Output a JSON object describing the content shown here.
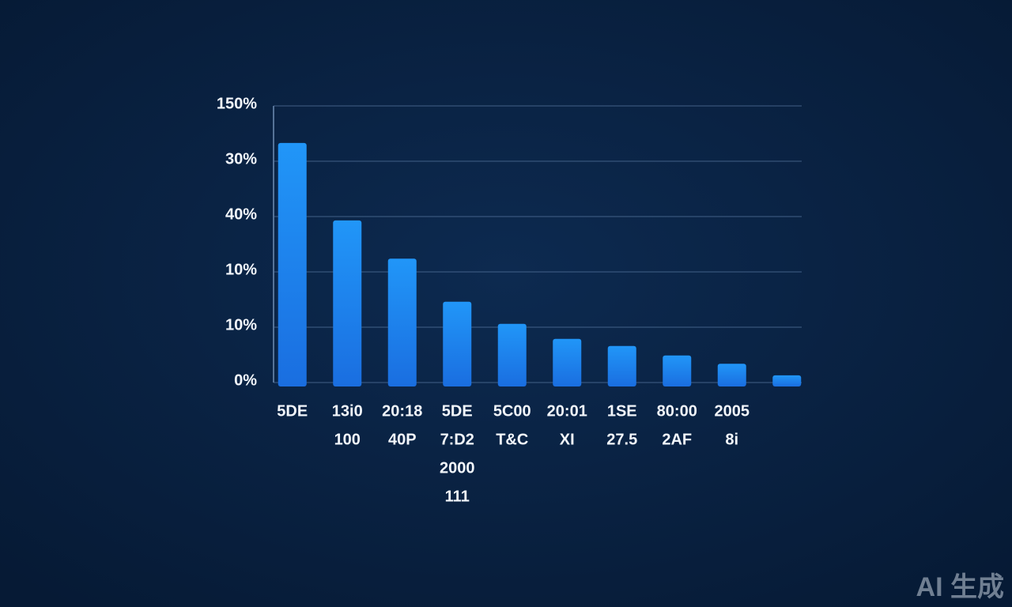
{
  "chart_data": {
    "type": "bar",
    "categories": [
      [
        "5DE"
      ],
      [
        "13i0",
        "100"
      ],
      [
        "20:18",
        "40P"
      ],
      [
        "5DE",
        "7:D2",
        "2000",
        "111"
      ],
      [
        "5C00",
        "T&C"
      ],
      [
        "20:01",
        "XI"
      ],
      [
        "1SE",
        "27.5"
      ],
      [
        "80:00",
        "2AF"
      ],
      [
        "2005",
        "8i"
      ],
      null
    ],
    "values": [
      4.33,
      2.93,
      2.24,
      1.46,
      1.06,
      0.79,
      0.66,
      0.49,
      0.34,
      0.13
    ],
    "color": "#1e8af5",
    "ylim": [
      0,
      5
    ],
    "yticks": [
      {
        "value": 0,
        "label": "0%"
      },
      {
        "value": 1,
        "label": "10%"
      },
      {
        "value": 2,
        "label": "10%"
      },
      {
        "value": 3,
        "label": "40%"
      },
      {
        "value": 4,
        "label": "30%"
      },
      {
        "value": 5,
        "label": "150%"
      }
    ],
    "grid": true
  },
  "watermark": "AI 生成"
}
